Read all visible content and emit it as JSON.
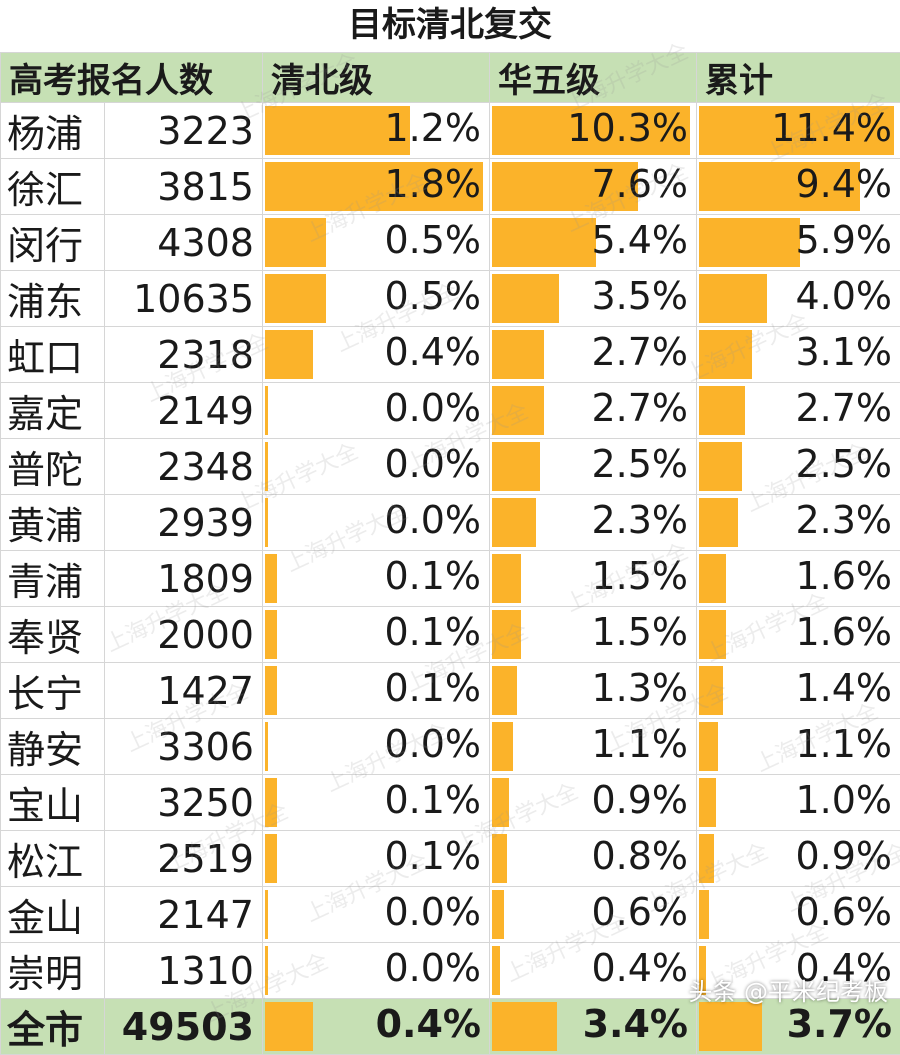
{
  "title": "目标清北复交",
  "headers": [
    "高考报名人数",
    "清北级",
    "华五级",
    "累计"
  ],
  "colors": {
    "bar": "#fbb32a",
    "header_bg": "#c6e0b4",
    "total_bg": "#c6e0b4"
  },
  "chart_data": {
    "type": "table",
    "columns": [
      "高考报名人数",
      "清北级",
      "华五级",
      "累计"
    ],
    "rows": [
      {
        "district": "杨浦",
        "count": "3223",
        "qingbei": "1.2%",
        "huawu": "10.3%",
        "total": "11.4%"
      },
      {
        "district": "徐汇",
        "count": "3815",
        "qingbei": "1.8%",
        "huawu": "7.6%",
        "total": "9.4%"
      },
      {
        "district": "闵行",
        "count": "4308",
        "qingbei": "0.5%",
        "huawu": "5.4%",
        "total": "5.9%"
      },
      {
        "district": "浦东",
        "count": "10635",
        "qingbei": "0.5%",
        "huawu": "3.5%",
        "total": "4.0%"
      },
      {
        "district": "虹口",
        "count": "2318",
        "qingbei": "0.4%",
        "huawu": "2.7%",
        "total": "3.1%"
      },
      {
        "district": "嘉定",
        "count": "2149",
        "qingbei": "0.0%",
        "huawu": "2.7%",
        "total": "2.7%"
      },
      {
        "district": "普陀",
        "count": "2348",
        "qingbei": "0.0%",
        "huawu": "2.5%",
        "total": "2.5%"
      },
      {
        "district": "黄浦",
        "count": "2939",
        "qingbei": "0.0%",
        "huawu": "2.3%",
        "total": "2.3%"
      },
      {
        "district": "青浦",
        "count": "1809",
        "qingbei": "0.1%",
        "huawu": "1.5%",
        "total": "1.6%"
      },
      {
        "district": "奉贤",
        "count": "2000",
        "qingbei": "0.1%",
        "huawu": "1.5%",
        "total": "1.6%"
      },
      {
        "district": "长宁",
        "count": "1427",
        "qingbei": "0.1%",
        "huawu": "1.3%",
        "total": "1.4%"
      },
      {
        "district": "静安",
        "count": "3306",
        "qingbei": "0.0%",
        "huawu": "1.1%",
        "total": "1.1%"
      },
      {
        "district": "宝山",
        "count": "3250",
        "qingbei": "0.1%",
        "huawu": "0.9%",
        "total": "1.0%"
      },
      {
        "district": "松江",
        "count": "2519",
        "qingbei": "0.1%",
        "huawu": "0.8%",
        "total": "0.9%"
      },
      {
        "district": "金山",
        "count": "2147",
        "qingbei": "0.0%",
        "huawu": "0.6%",
        "total": "0.6%"
      },
      {
        "district": "崇明",
        "count": "1310",
        "qingbei": "0.0%",
        "huawu": "0.4%",
        "total": "0.4%"
      }
    ],
    "total_row": {
      "district": "全市",
      "count": "49503",
      "qingbei": "0.4%",
      "huawu": "3.4%",
      "total": "3.7%"
    },
    "bar_scale": {
      "qingbei": 1.8,
      "huawu": 10.3,
      "total": 11.4
    }
  },
  "watermark_text": "上海升学大全",
  "source_watermark": "头条 @平米纪考板"
}
